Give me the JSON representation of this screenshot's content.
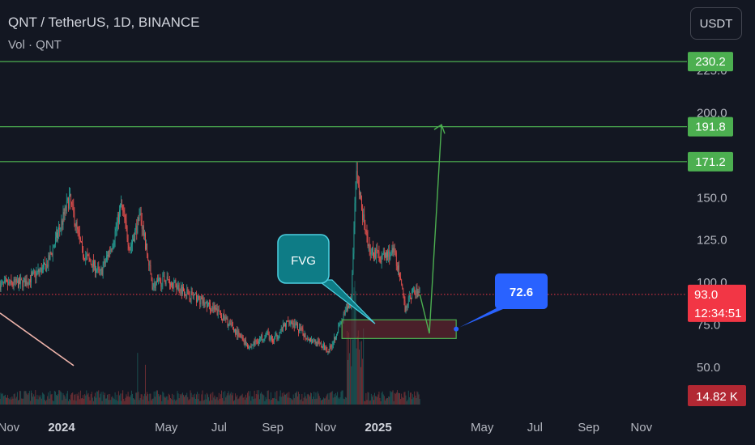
{
  "header": {
    "title": "QNT / TetherUS, 1D, BINANCE",
    "subtitle": "Vol · QNT"
  },
  "currency_button": {
    "label": "USDT"
  },
  "colors": {
    "background": "#131722",
    "up": "#26a69a",
    "down": "#ef5350",
    "level_line": "#4caf50",
    "current_price": "#f23645",
    "callout_blue": "#2962ff",
    "fvg_callout": "#0e7c86",
    "volume_badge": "#b22833"
  },
  "level_badges": [
    {
      "label": "230.2",
      "price": 230.2
    },
    {
      "label": "191.8",
      "price": 191.8
    },
    {
      "label": "171.2",
      "price": 171.2
    }
  ],
  "current_price": {
    "label": "93.0",
    "price": 93.0,
    "countdown": "12:34:51"
  },
  "volume_badge": {
    "label": "14.82 K"
  },
  "annotations": {
    "fvg_label": "FVG",
    "target_label": "72.6"
  },
  "chart_data": {
    "type": "candlestick",
    "title": "QNT / TetherUS, 1D, BINANCE",
    "y_axis_ticks": [
      {
        "label": "225.0",
        "value": 225
      },
      {
        "label": "200.0",
        "value": 200
      },
      {
        "label": "150.0",
        "value": 150
      },
      {
        "label": "125.0",
        "value": 125
      },
      {
        "label": "100.0",
        "value": 100
      },
      {
        "label": "75.0",
        "value": 75
      },
      {
        "label": "50.0",
        "value": 50
      }
    ],
    "x_axis_ticks": [
      {
        "label": "Nov",
        "bold": false
      },
      {
        "label": "2024",
        "bold": true
      },
      {
        "label": "May",
        "bold": false
      },
      {
        "label": "Jul",
        "bold": false
      },
      {
        "label": "Sep",
        "bold": false
      },
      {
        "label": "Nov",
        "bold": false
      },
      {
        "label": "2025",
        "bold": true
      },
      {
        "label": "May",
        "bold": false
      },
      {
        "label": "Jul",
        "bold": false
      },
      {
        "label": "Sep",
        "bold": false
      },
      {
        "label": "Nov",
        "bold": false
      }
    ],
    "x_axis_dates": [
      "2023-11-01",
      "2024-01-01",
      "2024-05-01",
      "2024-07-01",
      "2024-09-01",
      "2024-11-01",
      "2025-01-01",
      "2025-05-01",
      "2025-07-01",
      "2025-09-01",
      "2025-11-01"
    ],
    "price_path_keypoints": [
      {
        "date": "2023-10-15",
        "close": 98
      },
      {
        "date": "2023-11-20",
        "close": 100
      },
      {
        "date": "2023-12-15",
        "close": 110
      },
      {
        "date": "2024-01-01",
        "close": 135
      },
      {
        "date": "2024-01-10",
        "close": 150
      },
      {
        "date": "2024-01-25",
        "close": 118
      },
      {
        "date": "2024-02-15",
        "close": 105
      },
      {
        "date": "2024-03-01",
        "close": 125
      },
      {
        "date": "2024-03-10",
        "close": 146
      },
      {
        "date": "2024-03-20",
        "close": 120
      },
      {
        "date": "2024-04-01",
        "close": 140
      },
      {
        "date": "2024-04-15",
        "close": 98
      },
      {
        "date": "2024-05-01",
        "close": 102
      },
      {
        "date": "2024-06-01",
        "close": 92
      },
      {
        "date": "2024-07-01",
        "close": 82
      },
      {
        "date": "2024-08-05",
        "close": 62
      },
      {
        "date": "2024-08-25",
        "close": 70
      },
      {
        "date": "2024-09-01",
        "close": 65
      },
      {
        "date": "2024-09-20",
        "close": 78
      },
      {
        "date": "2024-10-10",
        "close": 68
      },
      {
        "date": "2024-11-05",
        "close": 60
      },
      {
        "date": "2024-11-15",
        "close": 72
      },
      {
        "date": "2024-12-01",
        "close": 90
      },
      {
        "date": "2024-12-06",
        "close": 165
      },
      {
        "date": "2024-12-12",
        "close": 145
      },
      {
        "date": "2024-12-20",
        "close": 120
      },
      {
        "date": "2025-01-05",
        "close": 115
      },
      {
        "date": "2025-01-20",
        "close": 118
      },
      {
        "date": "2025-02-01",
        "close": 85
      },
      {
        "date": "2025-02-10",
        "close": 95
      },
      {
        "date": "2025-02-18",
        "close": 93
      }
    ],
    "horizontal_levels": [
      230.2,
      191.8,
      171.2
    ],
    "fvg_zone": {
      "start": "2024-11-20",
      "end": "2025-04-01",
      "top": 78,
      "bottom": 67
    },
    "projection_path": [
      {
        "date": "2025-02-18",
        "value": 93
      },
      {
        "date": "2025-03-01",
        "value": 70
      },
      {
        "date": "2025-03-15",
        "value": 193
      }
    ],
    "target_point": {
      "date": "2025-04-01",
      "value": 72.6
    },
    "grid": false,
    "legend": "none"
  }
}
